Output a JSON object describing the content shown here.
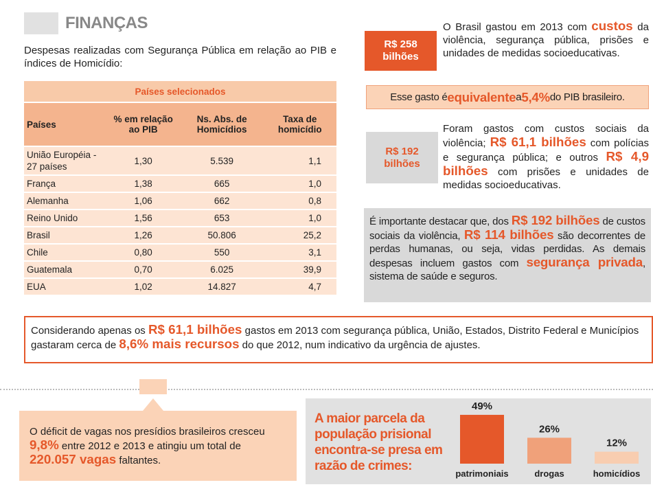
{
  "header": {
    "title": "FINANÇAS",
    "intro": "Despesas realizadas com Segurança Pública em relação ao PIB e índices de Homicídio:"
  },
  "table": {
    "caption": "Países selecionados",
    "headers": [
      "Países",
      "% em relação ao PIB",
      "Ns. Abs. de Homicídios",
      "Taxa de homicídio"
    ],
    "rows": [
      [
        "União Européia - 27 países",
        "1,30",
        "5.539",
        "1,1"
      ],
      [
        "França",
        "1,38",
        "665",
        "1,0"
      ],
      [
        "Alemanha",
        "1,06",
        "662",
        "0,8"
      ],
      [
        "Reino Unido",
        "1,56",
        "653",
        "1,0"
      ],
      [
        "Brasil",
        "1,26",
        "50.806",
        "25,2"
      ],
      [
        "Chile",
        "0,80",
        "550",
        "3,1"
      ],
      [
        "Guatemala",
        "0,70",
        "6.025",
        "39,9"
      ],
      [
        "EUA",
        "1,02",
        "14.827",
        "4,7"
      ]
    ]
  },
  "spending": {
    "badge": "R$ 258 bilhões",
    "text": {
      "segments": [
        {
          "text": "O Brasil gastou em 2013 com "
        },
        {
          "text": "custos",
          "em": true
        },
        {
          "text": " da violência, segurança pública, prisões e unidades de medidas socioeducativas."
        }
      ]
    }
  },
  "equivalent": {
    "segments": [
      {
        "text": "Esse gasto é "
      },
      {
        "text": "equivalente",
        "em": true
      },
      {
        "text": " a "
      },
      {
        "text": "5,4%",
        "em": true
      },
      {
        "text": " do PIB brasileiro."
      }
    ]
  },
  "social_costs": {
    "badge": "R$ 192 bilhões",
    "text": {
      "segments": [
        {
          "text": "Foram gastos com custos sociais da violência; "
        },
        {
          "text": "R$ 61,1 bilhões",
          "em": true
        },
        {
          "text": " com polícias e segurança pública; e outros "
        },
        {
          "text": "R$ 4,9 bilhões",
          "em": true
        },
        {
          "text": " com prisões e unidades de medidas socioeducativas."
        }
      ]
    }
  },
  "highlight": {
    "segments": [
      {
        "text": "É importante destacar que, dos "
      },
      {
        "text": "R$ 192 bilhões",
        "em": true
      },
      {
        "text": " de custos sociais da violência, "
      },
      {
        "text": "R$ 114 bilhões",
        "em": true
      },
      {
        "text": " são decorrentes de perdas humanas, ou seja, vidas perdidas. As demais despesas incluem gastos com "
      },
      {
        "text": "segurança privada",
        "em": true
      },
      {
        "text": ", sistema de saúde e seguros."
      }
    ]
  },
  "considering": {
    "segments": [
      {
        "text": "Considerando apenas os "
      },
      {
        "text": "R$ 61,1 bilhões",
        "em": true
      },
      {
        "text": " gastos em 2013 com segurança pública, União, Estados, Distrito Federal e Municípios gastaram cerca de "
      },
      {
        "text": "8,6% mais recursos",
        "em": true
      },
      {
        "text": " do que 2012, num indicativo da urgência de ajustes."
      }
    ]
  },
  "deficit": {
    "segments": [
      {
        "text": "O déficit de vagas nos presídios brasileiros cresceu "
      },
      {
        "text": "9,8%",
        "em": true
      },
      {
        "text": " entre 2012 e 2013 e atingiu um total de "
      },
      {
        "text": "220.057 vagas",
        "em": true
      },
      {
        "text": " faltantes."
      }
    ]
  },
  "prison": {
    "title": "A maior parcela da população prisional encontra-se presa em razão de crimes:",
    "chart": {
      "type": "bar",
      "categories": [
        "patrimoniais",
        "drogas",
        "homicídios"
      ],
      "values": [
        49,
        26,
        12
      ],
      "value_labels": [
        "49%",
        "26%",
        "12%"
      ],
      "colors": [
        "#e5582a",
        "#f0a17a",
        "#f8cdb0"
      ]
    }
  }
}
